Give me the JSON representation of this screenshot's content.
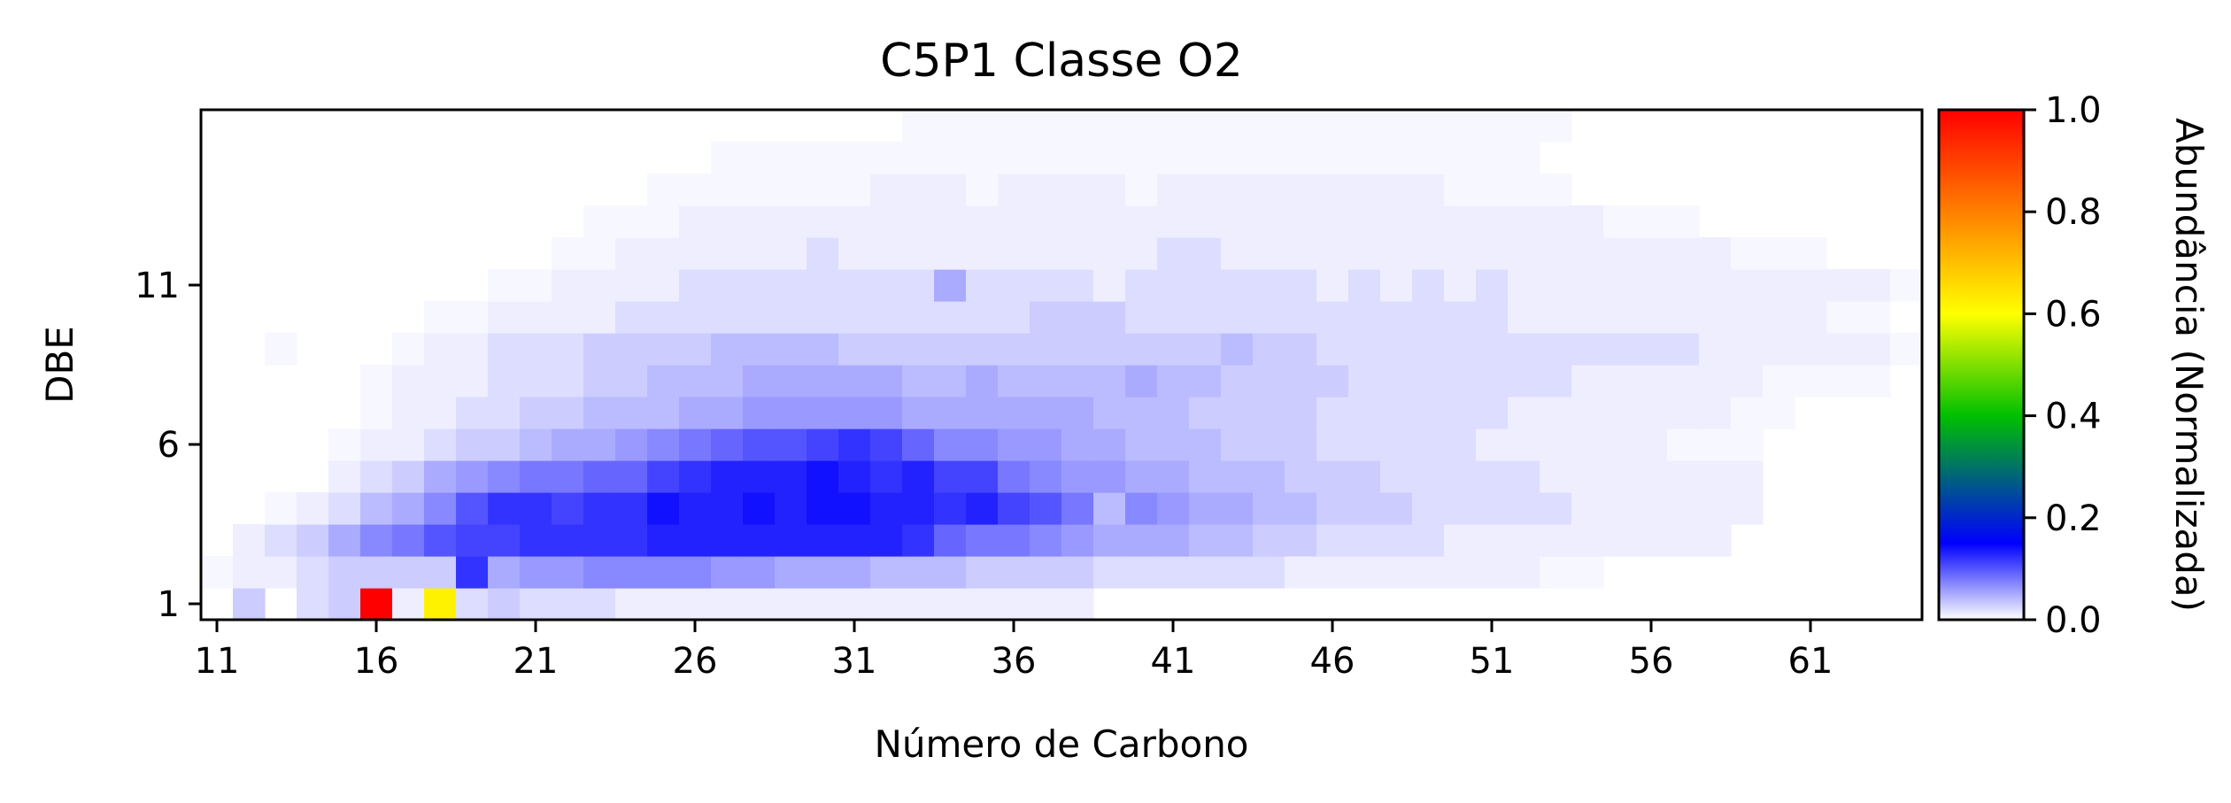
{
  "chart_data": {
    "type": "heatmap",
    "title": "C5P1 Classe O2",
    "xlabel": "Número de Carbono",
    "ylabel": "DBE",
    "colorbar_label": "Abundância (Normalizada)",
    "xlim": [
      10.5,
      64.5
    ],
    "ylim": [
      0.5,
      16.5
    ],
    "x_ticks": [
      11,
      16,
      21,
      26,
      31,
      36,
      41,
      46,
      51,
      56,
      61
    ],
    "y_ticks": [
      1,
      6,
      11
    ],
    "colorbar_ticks": [
      0.0,
      0.2,
      0.4,
      0.6,
      0.8,
      1.0
    ],
    "colorbar_tick_labels": [
      "0.0",
      "0.2",
      "0.4",
      "0.6",
      "0.8",
      "1.0"
    ],
    "colormap": [
      "#ffffff",
      "#0000ff",
      "#00c000",
      "#ffff00",
      "#ff0000"
    ],
    "colormap_stops": [
      0.0,
      0.15,
      0.4,
      0.6,
      1.0
    ],
    "rows": [
      {
        "dbe": 1,
        "c_start": 12,
        "values": [
          0.03,
          0,
          0.02,
          0.03,
          1.0,
          0.01,
          0.62,
          0.02,
          0.03,
          0.02,
          0.02,
          0.02,
          0.01,
          0.01,
          0.01,
          0.01,
          0.01,
          0.01,
          0.01,
          0.01,
          0.01,
          0.01,
          0.01,
          0.01,
          0.01,
          0.01,
          0.01
        ]
      },
      {
        "dbe": 2,
        "c_start": 11,
        "values": [
          0.005,
          0.01,
          0.01,
          0.02,
          0.03,
          0.03,
          0.03,
          0.03,
          0.12,
          0.05,
          0.06,
          0.06,
          0.07,
          0.07,
          0.07,
          0.07,
          0.06,
          0.06,
          0.05,
          0.05,
          0.05,
          0.04,
          0.04,
          0.04,
          0.03,
          0.03,
          0.03,
          0.03,
          0.02,
          0.02,
          0.02,
          0.02,
          0.02,
          0.02,
          0.01,
          0.01,
          0.01,
          0.01,
          0.01,
          0.01,
          0.01,
          0.01,
          0.005,
          0.005
        ]
      },
      {
        "dbe": 3,
        "c_start": 12,
        "values": [
          0.01,
          0.02,
          0.03,
          0.05,
          0.07,
          0.08,
          0.1,
          0.11,
          0.11,
          0.12,
          0.12,
          0.12,
          0.12,
          0.13,
          0.13,
          0.13,
          0.13,
          0.13,
          0.13,
          0.13,
          0.13,
          0.12,
          0.09,
          0.08,
          0.08,
          0.07,
          0.06,
          0.05,
          0.05,
          0.05,
          0.04,
          0.04,
          0.03,
          0.03,
          0.02,
          0.02,
          0.02,
          0.02,
          0.01,
          0.01,
          0.01,
          0.01,
          0.01,
          0.01,
          0.01,
          0.01,
          0.01
        ]
      },
      {
        "dbe": 4,
        "c_start": 13,
        "values": [
          0.005,
          0.01,
          0.02,
          0.04,
          0.05,
          0.07,
          0.1,
          0.12,
          0.12,
          0.11,
          0.12,
          0.12,
          0.14,
          0.13,
          0.13,
          0.14,
          0.13,
          0.14,
          0.14,
          0.13,
          0.13,
          0.12,
          0.13,
          0.11,
          0.1,
          0.08,
          0.04,
          0.07,
          0.06,
          0.05,
          0.05,
          0.04,
          0.04,
          0.03,
          0.03,
          0.03,
          0.02,
          0.02,
          0.02,
          0.02,
          0.02,
          0.01,
          0.01,
          0.01,
          0.01,
          0.01,
          0.01
        ]
      },
      {
        "dbe": 5,
        "c_start": 15,
        "values": [
          0.01,
          0.02,
          0.03,
          0.05,
          0.06,
          0.07,
          0.08,
          0.08,
          0.09,
          0.09,
          0.11,
          0.12,
          0.13,
          0.13,
          0.13,
          0.14,
          0.13,
          0.12,
          0.13,
          0.11,
          0.11,
          0.08,
          0.07,
          0.06,
          0.06,
          0.05,
          0.05,
          0.04,
          0.04,
          0.04,
          0.03,
          0.03,
          0.03,
          0.02,
          0.02,
          0.02,
          0.02,
          0.02,
          0.01,
          0.01,
          0.01,
          0.01,
          0.01,
          0.01,
          0.01
        ]
      },
      {
        "dbe": 6,
        "c_start": 15,
        "values": [
          0.005,
          0.01,
          0.01,
          0.02,
          0.03,
          0.03,
          0.04,
          0.05,
          0.05,
          0.06,
          0.07,
          0.08,
          0.09,
          0.1,
          0.1,
          0.11,
          0.12,
          0.11,
          0.09,
          0.07,
          0.07,
          0.06,
          0.06,
          0.05,
          0.05,
          0.04,
          0.04,
          0.04,
          0.03,
          0.03,
          0.03,
          0.02,
          0.02,
          0.02,
          0.02,
          0.02,
          0.01,
          0.01,
          0.01,
          0.01,
          0.01,
          0.01,
          0.005,
          0.005,
          0.005
        ]
      },
      {
        "dbe": 7,
        "c_start": 16,
        "values": [
          0.005,
          0.01,
          0.01,
          0.02,
          0.02,
          0.03,
          0.03,
          0.04,
          0.04,
          0.04,
          0.05,
          0.05,
          0.06,
          0.06,
          0.06,
          0.06,
          0.06,
          0.05,
          0.05,
          0.05,
          0.05,
          0.05,
          0.05,
          0.04,
          0.04,
          0.04,
          0.03,
          0.03,
          0.03,
          0.03,
          0.02,
          0.02,
          0.02,
          0.02,
          0.02,
          0.02,
          0.01,
          0.01,
          0.01,
          0.01,
          0.01,
          0.01,
          0.01,
          0.005,
          0.005
        ]
      },
      {
        "dbe": 8,
        "c_start": 16,
        "values": [
          0.005,
          0.01,
          0.01,
          0.01,
          0.02,
          0.02,
          0.02,
          0.03,
          0.03,
          0.04,
          0.04,
          0.04,
          0.05,
          0.05,
          0.05,
          0.05,
          0.05,
          0.04,
          0.04,
          0.05,
          0.04,
          0.04,
          0.04,
          0.04,
          0.05,
          0.04,
          0.04,
          0.03,
          0.03,
          0.03,
          0.03,
          0.02,
          0.02,
          0.02,
          0.02,
          0.02,
          0.02,
          0.02,
          0.01,
          0.01,
          0.01,
          0.01,
          0.01,
          0.01,
          0.005,
          0.005,
          0.005,
          0.005
        ]
      },
      {
        "dbe": 9,
        "c_start": 13,
        "values": [
          0.005,
          0,
          0,
          0,
          0.005,
          0.01,
          0.01,
          0.02,
          0.02,
          0.02,
          0.03,
          0.03,
          0.03,
          0.03,
          0.04,
          0.04,
          0.04,
          0.04,
          0.03,
          0.03,
          0.03,
          0.03,
          0.03,
          0.03,
          0.03,
          0.03,
          0.03,
          0.03,
          0.03,
          0.03,
          0.04,
          0.03,
          0.03,
          0.02,
          0.02,
          0.02,
          0.02,
          0.02,
          0.02,
          0.02,
          0.02,
          0.02,
          0.02,
          0.02,
          0.02,
          0.01,
          0.01,
          0.01,
          0.01,
          0.01,
          0.01,
          0.005
        ]
      },
      {
        "dbe": 10,
        "c_start": 18,
        "values": [
          0.005,
          0.005,
          0.01,
          0.01,
          0.01,
          0.01,
          0.02,
          0.02,
          0.02,
          0.02,
          0.02,
          0.02,
          0.02,
          0.02,
          0.02,
          0.02,
          0.02,
          0.02,
          0.02,
          0.03,
          0.03,
          0.03,
          0.02,
          0.02,
          0.02,
          0.02,
          0.02,
          0.02,
          0.02,
          0.02,
          0.02,
          0.02,
          0.02,
          0.02,
          0.01,
          0.01,
          0.01,
          0.01,
          0.01,
          0.01,
          0.01,
          0.01,
          0.01,
          0.01,
          0.005,
          0.005
        ]
      },
      {
        "dbe": 11,
        "c_start": 20,
        "values": [
          0.005,
          0.005,
          0.01,
          0.01,
          0.01,
          0.01,
          0.02,
          0.02,
          0.02,
          0.02,
          0.02,
          0.02,
          0.02,
          0.02,
          0.05,
          0.02,
          0.02,
          0.02,
          0.02,
          0.01,
          0.02,
          0.02,
          0.02,
          0.02,
          0.02,
          0.02,
          0.01,
          0.02,
          0.01,
          0.02,
          0.01,
          0.02,
          0.01,
          0.01,
          0.01,
          0.01,
          0.01,
          0.01,
          0.01,
          0.01,
          0.01,
          0.01,
          0.01,
          0.01,
          0.005
        ]
      },
      {
        "dbe": 12,
        "c_start": 22,
        "values": [
          0.005,
          0.005,
          0.01,
          0.01,
          0.01,
          0.01,
          0.01,
          0.01,
          0.02,
          0.01,
          0.01,
          0.01,
          0.01,
          0.01,
          0.01,
          0.01,
          0.01,
          0.01,
          0.01,
          0.02,
          0.02,
          0.01,
          0.01,
          0.01,
          0.01,
          0.01,
          0.01,
          0.01,
          0.01,
          0.01,
          0.01,
          0.01,
          0.01,
          0.01,
          0.01,
          0.01,
          0.01,
          0.005,
          0.005,
          0.005
        ]
      },
      {
        "dbe": 13,
        "c_start": 23,
        "values": [
          0.005,
          0.005,
          0.005,
          0.01,
          0.01,
          0.01,
          0.01,
          0.01,
          0.01,
          0.01,
          0.01,
          0.01,
          0.01,
          0.01,
          0.01,
          0.01,
          0.01,
          0.01,
          0.01,
          0.01,
          0.01,
          0.01,
          0.01,
          0.01,
          0.01,
          0.01,
          0.01,
          0.01,
          0.01,
          0.01,
          0.01,
          0.01,
          0.005,
          0.005,
          0.005
        ]
      },
      {
        "dbe": 14,
        "c_start": 25,
        "values": [
          0.005,
          0.005,
          0.005,
          0.005,
          0.005,
          0.005,
          0.005,
          0.01,
          0.01,
          0.01,
          0.005,
          0.01,
          0.01,
          0.01,
          0.01,
          0.005,
          0.01,
          0.01,
          0.01,
          0.01,
          0.01,
          0.01,
          0.01,
          0.01,
          0.01,
          0.005,
          0.005,
          0.005,
          0.005
        ]
      },
      {
        "dbe": 15,
        "c_start": 27,
        "values": [
          0.005,
          0.005,
          0.005,
          0.005,
          0.005,
          0.005,
          0.005,
          0.005,
          0.005,
          0.005,
          0.005,
          0.005,
          0.005,
          0.005,
          0.005,
          0.005,
          0.005,
          0.005,
          0.005,
          0.005,
          0.005,
          0.005,
          0.005,
          0.005,
          0.005,
          0.005
        ]
      },
      {
        "dbe": 16,
        "c_start": 33,
        "values": [
          0.005,
          0.005,
          0.005,
          0.005,
          0.005,
          0.005,
          0.005,
          0.005,
          0.005,
          0.005,
          0.005,
          0.005,
          0.005,
          0.005,
          0.005,
          0.005,
          0.005,
          0.005,
          0.005,
          0.005,
          0.005
        ]
      }
    ]
  }
}
